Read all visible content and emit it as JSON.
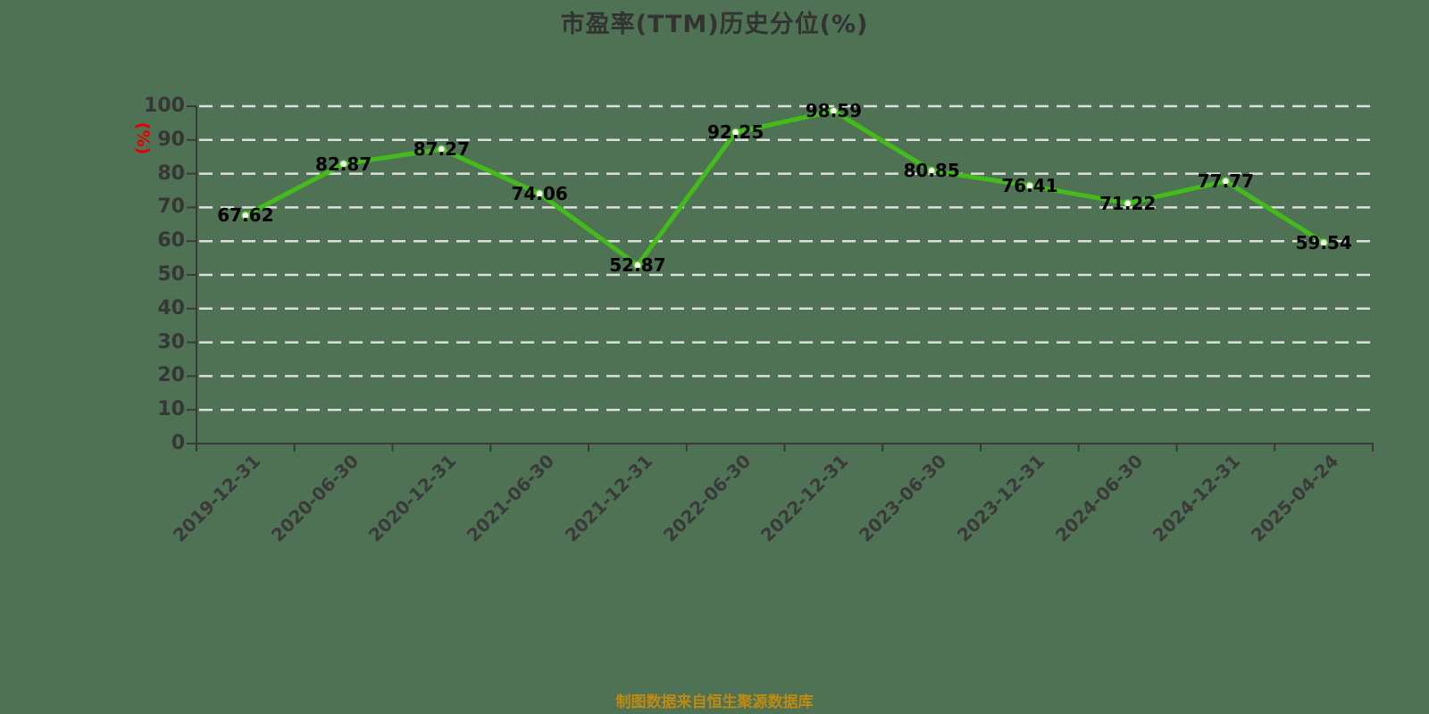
{
  "title": "市盈率(TTM)历史分位(%)",
  "y_axis_unit": "(%)",
  "footer": "制图数据来自恒生聚源数据库",
  "chart_data": {
    "type": "line",
    "title": "市盈率(TTM)历史分位(%)",
    "ylabel": "(%)",
    "xlabel": "",
    "categories": [
      "2019-12-31",
      "2020-06-30",
      "2020-12-31",
      "2021-06-30",
      "2021-12-31",
      "2022-06-30",
      "2022-12-31",
      "2023-06-30",
      "2023-12-31",
      "2024-06-30",
      "2024-12-31",
      "2025-04-24"
    ],
    "values": [
      67.62,
      82.87,
      87.27,
      74.06,
      52.87,
      92.25,
      98.59,
      80.85,
      76.41,
      71.22,
      77.77,
      59.54
    ],
    "ylim": [
      0,
      100
    ],
    "ytick_step": 10,
    "yticks": [
      0,
      10,
      20,
      30,
      40,
      50,
      60,
      70,
      80,
      90,
      100
    ],
    "grid": "horizontal-dashed",
    "legend_position": "none",
    "annotation": "制图数据来自恒生聚源数据库",
    "colors": {
      "background": "#4e7253",
      "line": "#43bc1b",
      "marker_fill": "#ffffff",
      "marker_stroke": "#5ecb2e",
      "grid": "#dedede",
      "axis": "#3a3a3a",
      "tick_label": "#363636",
      "data_label": "#000000",
      "title": "#333333",
      "ylabel": "#e60000",
      "footer": "#bf8a12"
    }
  }
}
